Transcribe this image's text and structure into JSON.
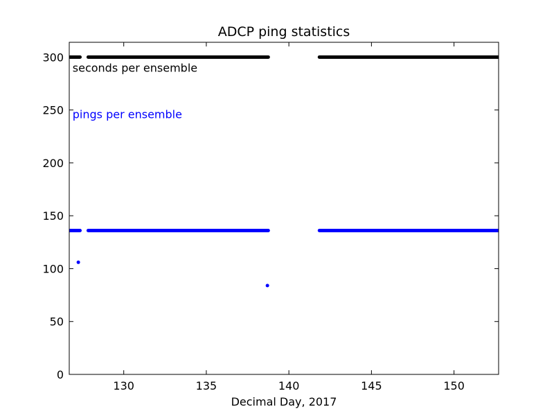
{
  "chart_data": {
    "type": "scatter",
    "title": "ADCP  ping statistics",
    "xlabel": "Decimal Day, 2017",
    "ylabel": "",
    "xlim": [
      126.7,
      152.7
    ],
    "ylim": [
      0,
      314
    ],
    "grid": false,
    "xticks": [
      130,
      135,
      140,
      145,
      150
    ],
    "xtick_labels": [
      "130",
      "135",
      "140",
      "145",
      "150"
    ],
    "yticks": [
      0,
      50,
      100,
      150,
      200,
      250,
      300
    ],
    "ytick_labels": [
      "0",
      "50",
      "100",
      "150",
      "200",
      "250",
      "300"
    ],
    "annotations": [
      {
        "text": "seconds per ensemble",
        "color": "#000000",
        "x": 126.9,
        "y": 290
      },
      {
        "text": "pings per ensemble",
        "color": "#0000ff",
        "x": 126.9,
        "y": 246
      }
    ],
    "series": [
      {
        "color": "#000000",
        "marker": "dot",
        "segments": [
          {
            "x_start": 126.75,
            "x_end": 127.35,
            "y": 300
          },
          {
            "x_start": 127.85,
            "x_end": 138.75,
            "y": 300
          },
          {
            "x_start": 141.85,
            "x_end": 152.7,
            "y": 300
          }
        ],
        "points": []
      },
      {
        "color": "#0000ff",
        "marker": "dot",
        "segments": [
          {
            "x_start": 126.75,
            "x_end": 127.35,
            "y": 136
          },
          {
            "x_start": 127.85,
            "x_end": 138.75,
            "y": 136
          },
          {
            "x_start": 141.85,
            "x_end": 152.7,
            "y": 136
          }
        ],
        "points": [
          {
            "x": 127.25,
            "y": 106
          },
          {
            "x": 138.7,
            "y": 84
          }
        ]
      }
    ]
  }
}
